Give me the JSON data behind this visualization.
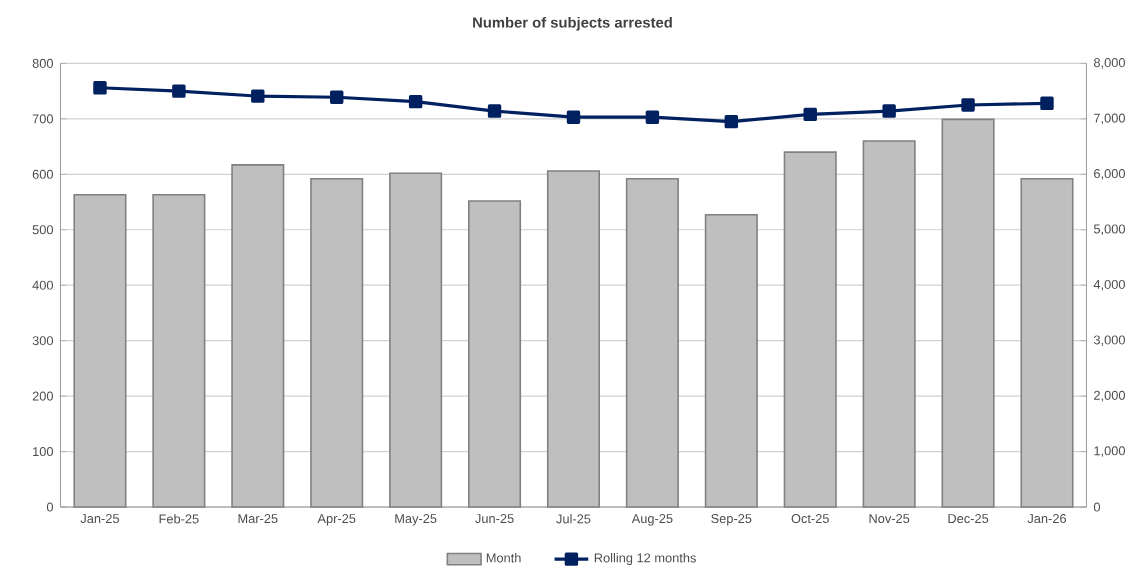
{
  "chart_data": {
    "type": "bar",
    "title": "Number of subjects arrested",
    "categories": [
      "Jan-25",
      "Feb-25",
      "Mar-25",
      "Apr-25",
      "May-25",
      "Jun-25",
      "Jul-25",
      "Aug-25",
      "Sep-25",
      "Oct-25",
      "Nov-25",
      "Dec-25",
      "Jan-26"
    ],
    "series": [
      {
        "name": "Month",
        "color": "#bfbfbf",
        "values": [
          563,
          563,
          617,
          592,
          602,
          552,
          606,
          592,
          527,
          640,
          660,
          699,
          592
        ]
      },
      {
        "name": "Rolling 12 months",
        "type": "line",
        "axis": "y2",
        "color": "#002060",
        "marker": "square",
        "values": [
          7560,
          7500,
          7410,
          7390,
          7310,
          7140,
          7030,
          7030,
          6950,
          7080,
          7140,
          7250,
          7280
        ]
      }
    ],
    "ylim": [
      0,
      800
    ],
    "yticks": [
      0,
      100,
      200,
      300,
      400,
      500,
      600,
      700,
      800
    ],
    "y2lim": [
      0,
      8000
    ],
    "y2ticks": [
      0,
      {
        "value": 1000,
        "label": "1,000"
      },
      {
        "value": 2000,
        "label": "2,000"
      },
      {
        "value": 3000,
        "label": "3,000"
      },
      {
        "value": 4000,
        "label": "4,000"
      },
      {
        "value": 5000,
        "label": "5,000"
      },
      {
        "value": 6000,
        "label": "6,000"
      },
      {
        "value": 7000,
        "label": "7,000"
      },
      {
        "value": 8000,
        "label": "8,000"
      }
    ],
    "grid": "y",
    "legend": "bottom"
  }
}
